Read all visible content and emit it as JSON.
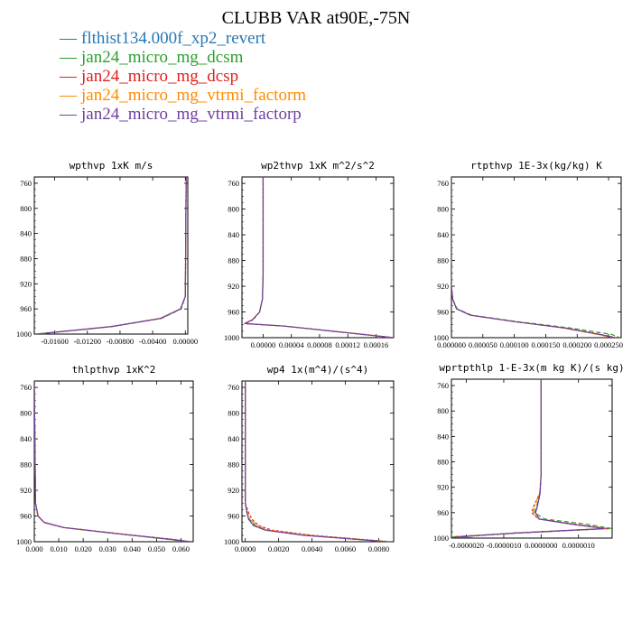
{
  "title": "CLUBB VAR at90E,-75N",
  "legend": [
    {
      "name": "flthist134.000f_xp2_revert",
      "color": "#2878b4",
      "dash": "",
      "sw": 1.0
    },
    {
      "name": "jan24_micro_mg_dcsm",
      "color": "#2ca02c",
      "dash": "5,3",
      "sw": 1.2
    },
    {
      "name": "jan24_micro_mg_dcsp",
      "color": "#e02020",
      "dash": "3,2",
      "sw": 1.2
    },
    {
      "name": "jan24_micro_mg_vtrmi_factorm",
      "color": "#ff8c00",
      "dash": "6,2,2,2",
      "sw": 1.2
    },
    {
      "name": "jan24_micro_mg_vtrmi_factorp",
      "color": "#7040a0",
      "dash": "",
      "sw": 1.2
    }
  ],
  "chart_data": [
    {
      "type": "line",
      "title": "wpthvp  1xK m/s",
      "xlim": [
        -0.0185,
        0.0003
      ],
      "ylim": [
        1000,
        750
      ],
      "yticks": [
        760,
        800,
        840,
        880,
        920,
        960,
        1000
      ],
      "xticks": [
        -0.016,
        -0.012,
        -0.008,
        -0.004,
        0.0
      ],
      "xtick_labels": [
        "-0.01600",
        "-0.01200",
        "-0.00800",
        "-0.00400",
        "0.00000"
      ],
      "series": [
        {
          "p": [
            750,
            940,
            960,
            975,
            988,
            1000
          ],
          "x": [
            0.0001,
            0.0,
            -0.0006,
            -0.003,
            -0.009,
            -0.0182
          ]
        },
        {
          "p": [
            750,
            940,
            960,
            975,
            988,
            1000
          ],
          "x": [
            0.0001,
            0.0,
            -0.0005,
            -0.0029,
            -0.0089,
            -0.0181
          ]
        },
        {
          "p": [
            750,
            940,
            960,
            975,
            988,
            1000
          ],
          "x": [
            0.0001,
            0.0,
            -0.0006,
            -0.003,
            -0.0091,
            -0.0183
          ]
        },
        {
          "p": [
            750,
            940,
            960,
            975,
            988,
            1000
          ],
          "x": [
            0.0001,
            0.0,
            -0.0006,
            -0.0031,
            -0.009,
            -0.0182
          ]
        },
        {
          "p": [
            750,
            940,
            960,
            975,
            988,
            1000
          ],
          "x": [
            0.0001,
            0.0,
            -0.0006,
            -0.003,
            -0.009,
            -0.0182
          ]
        }
      ]
    },
    {
      "type": "line",
      "title": "wp2thvp   1xK m^2/s^2",
      "xlim": [
        -3e-05,
        0.000185
      ],
      "ylim": [
        1000,
        750
      ],
      "yticks": [
        760,
        800,
        840,
        880,
        920,
        960,
        1000
      ],
      "xticks": [
        0.0,
        4e-05,
        8e-05,
        0.00012,
        0.00016
      ],
      "xtick_labels": [
        "0.00000",
        "0.00004",
        "0.00008",
        "0.00012",
        "0.00016"
      ],
      "series": [
        {
          "p": [
            745,
            900,
            940,
            960,
            972,
            978,
            982,
            1000
          ],
          "x": [
            0.0,
            0.0,
            -1e-06,
            -5e-06,
            -1.5e-05,
            -2.6e-05,
            3e-05,
            0.000185
          ]
        },
        {
          "p": [
            745,
            900,
            940,
            960,
            972,
            978,
            982,
            1000
          ],
          "x": [
            0.0,
            0.0,
            -1e-06,
            -5e-06,
            -1.5e-05,
            -2.6e-05,
            3e-05,
            0.000184
          ]
        },
        {
          "p": [
            745,
            900,
            940,
            960,
            972,
            978,
            982,
            1000
          ],
          "x": [
            0.0,
            0.0,
            -1e-06,
            -5e-06,
            -1.4e-05,
            -2.5e-05,
            3e-05,
            0.000186
          ]
        },
        {
          "p": [
            745,
            900,
            940,
            960,
            972,
            978,
            982,
            1000
          ],
          "x": [
            0.0,
            0.0,
            -1e-06,
            -5e-06,
            -1.5e-05,
            -2.6e-05,
            3e-05,
            0.000185
          ]
        },
        {
          "p": [
            745,
            900,
            940,
            960,
            972,
            978,
            982,
            1000
          ],
          "x": [
            0.0,
            0.0,
            -1e-06,
            -5e-06,
            -1.5e-05,
            -2.6e-05,
            3e-05,
            0.000185
          ]
        }
      ]
    },
    {
      "type": "line",
      "title": "rtpthvp   1E-3x(kg/kg) K",
      "xlim": [
        0.0,
        0.00027
      ],
      "ylim": [
        1000,
        750
      ],
      "yticks": [
        760,
        800,
        840,
        880,
        920,
        960,
        1000
      ],
      "xticks": [
        0.0,
        5e-05,
        0.0001,
        0.00015,
        0.0002,
        0.00025
      ],
      "xtick_labels": [
        "0.000000",
        "0.000050",
        "0.000100",
        "0.000150",
        "0.000200",
        "0.000250"
      ],
      "series": [
        {
          "p": [
            750,
            920,
            940,
            955,
            965,
            975,
            985,
            995,
            1000
          ],
          "x": [
            0.0,
            0.0,
            2e-06,
            8e-06,
            3e-05,
            0.0001,
            0.00018,
            0.000235,
            0.00026
          ]
        },
        {
          "p": [
            750,
            920,
            940,
            955,
            965,
            975,
            985,
            995,
            1000
          ],
          "x": [
            0.0,
            0.0,
            2e-06,
            9e-06,
            3.2e-05,
            0.000105,
            0.00019,
            0.000255,
            0.000268
          ]
        },
        {
          "p": [
            750,
            920,
            940,
            955,
            965,
            975,
            985,
            995,
            1000
          ],
          "x": [
            0.0,
            0.0,
            2e-06,
            8e-06,
            3e-05,
            0.0001,
            0.000182,
            0.000238,
            0.000262
          ]
        },
        {
          "p": [
            750,
            920,
            940,
            955,
            965,
            975,
            985,
            995,
            1000
          ],
          "x": [
            0.0,
            0.0,
            2e-06,
            8e-06,
            3e-05,
            0.0001,
            0.000178,
            0.000232,
            0.000258
          ]
        },
        {
          "p": [
            750,
            920,
            940,
            955,
            965,
            975,
            985,
            995,
            1000
          ],
          "x": [
            0.0,
            0.0,
            2e-06,
            8e-06,
            3e-05,
            0.0001,
            0.00018,
            0.000236,
            0.00026
          ]
        }
      ]
    },
    {
      "type": "line",
      "title": "thlpthvp   1xK^2",
      "xlim": [
        0.0,
        0.065
      ],
      "ylim": [
        1000,
        750
      ],
      "yticks": [
        760,
        800,
        840,
        880,
        920,
        960,
        1000
      ],
      "xticks": [
        0.0,
        0.01,
        0.02,
        0.03,
        0.04,
        0.05,
        0.06
      ],
      "xtick_labels": [
        "0.000",
        "0.010",
        "0.020",
        "0.030",
        "0.040",
        "0.050",
        "0.060"
      ],
      "series": [
        {
          "p": [
            750,
            940,
            960,
            970,
            978,
            988,
            996,
            1000
          ],
          "x": [
            0.0,
            0.0005,
            0.0015,
            0.004,
            0.012,
            0.035,
            0.055,
            0.064
          ]
        },
        {
          "p": [
            750,
            940,
            960,
            970,
            978,
            988,
            996,
            1000
          ],
          "x": [
            0.0,
            0.0005,
            0.0015,
            0.004,
            0.012,
            0.035,
            0.054,
            0.063
          ]
        },
        {
          "p": [
            750,
            940,
            960,
            970,
            978,
            988,
            996,
            1000
          ],
          "x": [
            0.0,
            0.0005,
            0.0016,
            0.0041,
            0.0122,
            0.036,
            0.056,
            0.064
          ]
        },
        {
          "p": [
            750,
            940,
            960,
            970,
            978,
            988,
            996,
            1000
          ],
          "x": [
            0.0,
            0.0005,
            0.0015,
            0.004,
            0.012,
            0.035,
            0.055,
            0.064
          ]
        },
        {
          "p": [
            750,
            940,
            960,
            970,
            978,
            988,
            996,
            1000
          ],
          "x": [
            0.0,
            0.0005,
            0.0015,
            0.004,
            0.012,
            0.035,
            0.055,
            0.064
          ]
        }
      ]
    },
    {
      "type": "line",
      "title": "wp4   1x(m^4)/(s^4)",
      "xlim": [
        -0.0002,
        0.0089
      ],
      "ylim": [
        1000,
        750
      ],
      "yticks": [
        760,
        800,
        840,
        880,
        920,
        960,
        1000
      ],
      "xticks": [
        0.0,
        0.002,
        0.004,
        0.006,
        0.008
      ],
      "xtick_labels": [
        "0.0000",
        "0.0020",
        "0.0040",
        "0.0060",
        "0.0080"
      ],
      "series": [
        {
          "p": [
            750,
            940,
            955,
            965,
            975,
            982,
            990,
            998,
            1000
          ],
          "x": [
            0.0,
            0.0,
            0.0001,
            0.0002,
            0.0005,
            0.0012,
            0.0035,
            0.0075,
            0.0085
          ]
        },
        {
          "p": [
            750,
            940,
            955,
            965,
            975,
            982,
            990,
            998,
            1000
          ],
          "x": [
            0.0,
            0.0,
            0.0001,
            0.00025,
            0.0006,
            0.0013,
            0.0036,
            0.0076,
            0.0086
          ]
        },
        {
          "p": [
            750,
            940,
            955,
            965,
            975,
            982,
            990,
            998,
            1000
          ],
          "x": [
            0.0,
            0.0,
            0.0002,
            0.0004,
            0.0008,
            0.0016,
            0.004,
            0.0078,
            0.0088
          ]
        },
        {
          "p": [
            750,
            940,
            955,
            965,
            975,
            982,
            990,
            998,
            1000
          ],
          "x": [
            0.0,
            0.0,
            0.00012,
            0.00028,
            0.0007,
            0.0014,
            0.0038,
            0.0077,
            0.0087
          ]
        },
        {
          "p": [
            750,
            940,
            955,
            965,
            975,
            982,
            990,
            998,
            1000
          ],
          "x": [
            0.0,
            0.0,
            0.0001,
            0.0002,
            0.0005,
            0.0012,
            0.0035,
            0.0075,
            0.0085
          ]
        }
      ]
    },
    {
      "type": "line",
      "title": "wprtpthlp   1-E-3x(m kg K)/(s kg)",
      "xlim": [
        -2.4e-06,
        1.9e-06
      ],
      "ylim": [
        1000,
        750
      ],
      "yticks": [
        760,
        800,
        840,
        880,
        920,
        960,
        1000
      ],
      "xticks": [
        -2e-06,
        -1e-06,
        0.0,
        1e-06
      ],
      "xtick_labels": [
        "-0.0000020",
        "-0.0000010",
        "0.0000000",
        "0.0000010"
      ],
      "series": [
        {
          "p": [
            750,
            900,
            930,
            950,
            960,
            970,
            978,
            985,
            992,
            998,
            1000
          ],
          "x": [
            0.0,
            0.0,
            -3e-08,
            -1e-07,
            -1.5e-07,
            -5e-08,
            8e-07,
            1.7e-06,
            -7e-07,
            -2.2e-06,
            -1.8e-06
          ]
        },
        {
          "p": [
            750,
            900,
            930,
            950,
            960,
            970,
            978,
            985,
            992,
            998,
            1000
          ],
          "x": [
            0.0,
            0.0,
            -3e-08,
            -1.2e-07,
            -1.8e-07,
            1e-07,
            1.2e-06,
            1.9e-06,
            -6e-07,
            -2.4e-06,
            -1.9e-06
          ]
        },
        {
          "p": [
            750,
            900,
            930,
            950,
            960,
            970,
            978,
            985,
            992,
            998,
            1000
          ],
          "x": [
            0.0,
            0.0,
            -4e-08,
            -2e-07,
            -2.5e-07,
            -8e-08,
            9e-07,
            1.8e-06,
            -7e-07,
            -2.3e-06,
            -1.8e-06
          ]
        },
        {
          "p": [
            750,
            900,
            930,
            950,
            960,
            970,
            978,
            985,
            992,
            998,
            1000
          ],
          "x": [
            0.0,
            0.0,
            -4e-08,
            -1.8e-07,
            -2.2e-07,
            -6e-08,
            8.5e-07,
            1.75e-06,
            -7e-07,
            -2.2e-06,
            -1.8e-06
          ]
        },
        {
          "p": [
            750,
            900,
            930,
            950,
            960,
            970,
            978,
            985,
            992,
            998,
            1000
          ],
          "x": [
            0.0,
            0.0,
            -3e-08,
            -1e-07,
            -1.5e-07,
            -5e-08,
            8e-07,
            1.7e-06,
            -7e-07,
            -2.2e-06,
            -1.8e-06
          ]
        }
      ]
    }
  ]
}
